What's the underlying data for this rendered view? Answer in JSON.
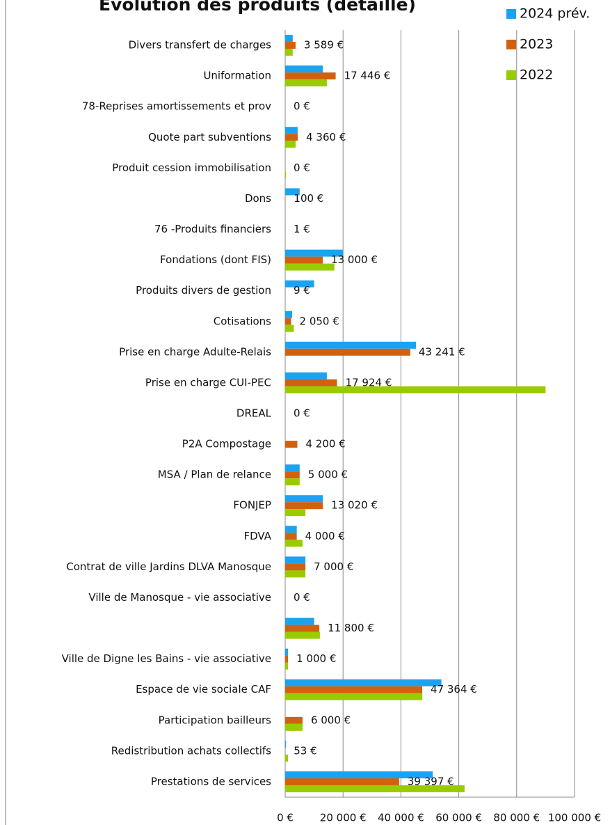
{
  "chart_data": {
    "type": "hbar",
    "title": "Évolution des produits (détaillé)",
    "categories": [
      "Divers transfert de charges",
      "Uniformation",
      "78-Reprises amortissements et prov",
      "Quote part subventions",
      "Produit cession immobilisation",
      "Dons",
      "76 -Produits financiers",
      "Fondations (dont FIS)",
      "Produits divers de gestion",
      "Cotisations",
      "Prise en charge Adulte-Relais",
      "Prise en charge CUI-PEC",
      "DREAL",
      "P2A Compostage",
      "MSA / Plan de relance",
      "FONJEP",
      "FDVA",
      "Contrat de ville Jardins DLVA Manosque",
      "Ville de Manosque - vie associative",
      null,
      "Ville de Digne les Bains - vie associative",
      "Espace de vie sociale CAF",
      "Participation bailleurs",
      "Redistribution achats collectifs",
      "Prestations de services"
    ],
    "series": [
      {
        "name": "2024 prév.",
        "color": "#1aa3f0",
        "values": [
          2600,
          13000,
          0,
          4300,
          0,
          5000,
          0,
          20000,
          10000,
          2400,
          45200,
          14400,
          0,
          0,
          5000,
          13000,
          4000,
          7000,
          0,
          10000,
          1000,
          54000,
          0,
          300,
          51000
        ]
      },
      {
        "name": "2023",
        "color": "#d0620f",
        "values": [
          3589,
          17446,
          0,
          4360,
          0,
          100,
          1,
          13000,
          9,
          2050,
          43241,
          17924,
          0,
          4200,
          5000,
          13020,
          4000,
          7000,
          0,
          11800,
          1000,
          47364,
          6000,
          53,
          39397
        ],
        "value_labels": [
          "3 589 €",
          "17 446 €",
          "0 €",
          "4 360 €",
          "0 €",
          "100 €",
          "1 €",
          "13 000 €",
          "9 €",
          "2 050 €",
          "43 241 €",
          "17 924 €",
          "0 €",
          "4 200 €",
          "5 000 €",
          "13 020 €",
          "4 000 €",
          "7 000 €",
          "0 €",
          "11 800 €",
          "1 000 €",
          "47 364 €",
          "6 000 €",
          "53 €",
          "39 397 €"
        ]
      },
      {
        "name": "2022",
        "color": "#99cc00",
        "values": [
          2600,
          14400,
          0,
          3600,
          300,
          0,
          0,
          17000,
          0,
          3000,
          0,
          90000,
          0,
          0,
          5000,
          7000,
          6000,
          7000,
          0,
          12000,
          1000,
          47400,
          6000,
          1000,
          62000
        ]
      }
    ],
    "xlim": [
      0,
      100000
    ],
    "xticks": [
      {
        "value": 0,
        "label": "0 €"
      },
      {
        "value": 20000,
        "label": "20 000 €"
      },
      {
        "value": 40000,
        "label": "40 000 €"
      },
      {
        "value": 60000,
        "label": "60 000 €"
      },
      {
        "value": 80000,
        "label": "80 000 €"
      },
      {
        "value": 100000,
        "label": "100 000 €"
      }
    ],
    "grid": true,
    "legend": "top-right"
  }
}
